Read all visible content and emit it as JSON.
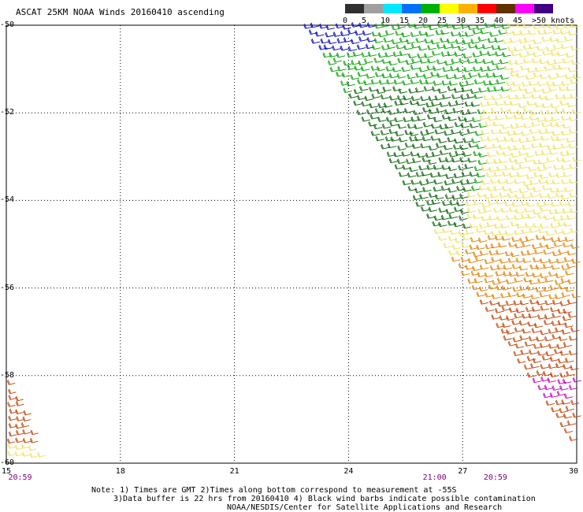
{
  "title": "ASCAT 25KM NOAA Winds 20160410 ascending",
  "legend": {
    "labels": [
      "0",
      "5",
      "10",
      "15",
      "20",
      "25",
      "30",
      "35",
      "40",
      "45",
      ">50 knots"
    ],
    "colors": [
      "#303030",
      "#a0a0a0",
      "#00e8ff",
      "#0070ff",
      "#00b000",
      "#ffff00",
      "#ffb000",
      "#ff0000",
      "#603000",
      "#ff00ff",
      "#400080"
    ]
  },
  "axes": {
    "x_ticks": [
      "15",
      "18",
      "21",
      "24",
      "27",
      "30"
    ],
    "y_ticks": [
      "-50",
      "-52",
      "-54",
      "-56",
      "-58",
      "-60"
    ],
    "x_range": [
      15,
      30
    ],
    "y_range": [
      -50,
      -60
    ],
    "grid": true
  },
  "times": [
    {
      "label": "20:59",
      "lon": 15.3
    },
    {
      "label": "21:00",
      "lon": 26.2
    },
    {
      "label": "20:59",
      "lon": 27.8
    }
  ],
  "notes": [
    "Note: 1) Times are GMT 2)Times along bottom correspond to measurement at -55S",
    "3)Data buffer is 22 hrs from 20160410 4) Black wind barbs indicate possible contamination",
    "NOAA/NESDIS/Center for Satellite Applications and Research"
  ],
  "barb_colors": {
    "blue": "#0000c0",
    "green": "#00a000",
    "darkgreen": "#006000",
    "yellow": "#f0e060",
    "orange": "#e08000",
    "darkorange": "#c04000",
    "magenta": "#c000c0"
  }
}
